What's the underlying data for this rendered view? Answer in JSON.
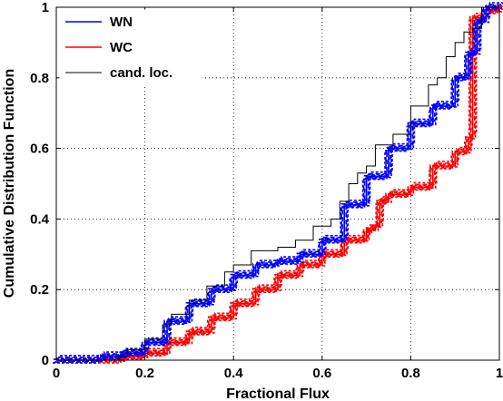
{
  "chart_data": {
    "type": "line",
    "title": "",
    "xlabel": "Fractional Flux",
    "ylabel": "Cumulative Distribution Function",
    "xlim": [
      0,
      1
    ],
    "ylim": [
      0,
      1
    ],
    "xticks": [
      "0",
      "0.2",
      "0.4",
      "0.6",
      "0.8",
      "1"
    ],
    "yticks": [
      "0",
      "0.2",
      "0.4",
      "0.6",
      "0.8",
      "1"
    ],
    "grid": true,
    "legend_position": "top-left",
    "series": [
      {
        "name": "WN",
        "color": "#0000ff",
        "style": "steps-with-dashed-bundle",
        "x": [
          0.0,
          0.1,
          0.15,
          0.2,
          0.25,
          0.3,
          0.35,
          0.4,
          0.45,
          0.5,
          0.55,
          0.6,
          0.65,
          0.7,
          0.75,
          0.8,
          0.85,
          0.9,
          0.93,
          0.95,
          0.97,
          1.0
        ],
        "y": [
          0.0,
          0.01,
          0.02,
          0.05,
          0.11,
          0.16,
          0.2,
          0.24,
          0.27,
          0.28,
          0.3,
          0.34,
          0.44,
          0.52,
          0.6,
          0.67,
          0.72,
          0.8,
          0.87,
          0.96,
          1.0,
          1.0
        ]
      },
      {
        "name": "WC",
        "color": "#ff0000",
        "style": "steps-with-dashed-bundle",
        "x": [
          0.0,
          0.1,
          0.15,
          0.2,
          0.25,
          0.3,
          0.35,
          0.4,
          0.45,
          0.5,
          0.55,
          0.6,
          0.65,
          0.7,
          0.72,
          0.73,
          0.75,
          0.8,
          0.85,
          0.9,
          0.93,
          0.94,
          0.94,
          0.97,
          1.0
        ],
        "y": [
          0.0,
          0.0,
          0.01,
          0.02,
          0.05,
          0.08,
          0.12,
          0.16,
          0.2,
          0.24,
          0.27,
          0.3,
          0.34,
          0.37,
          0.38,
          0.45,
          0.47,
          0.49,
          0.55,
          0.59,
          0.63,
          0.65,
          0.97,
          0.99,
          1.0
        ]
      },
      {
        "name": "cand. loc.",
        "color": "#000000",
        "style": "steps",
        "x": [
          0.0,
          0.14,
          0.16,
          0.2,
          0.24,
          0.26,
          0.3,
          0.34,
          0.38,
          0.4,
          0.44,
          0.5,
          0.54,
          0.58,
          0.62,
          0.64,
          0.66,
          0.68,
          0.7,
          0.72,
          0.76,
          0.8,
          0.84,
          0.86,
          0.88,
          0.9,
          0.92,
          0.94,
          0.96,
          1.0
        ],
        "y": [
          0.0,
          0.01,
          0.03,
          0.06,
          0.1,
          0.13,
          0.17,
          0.21,
          0.25,
          0.27,
          0.31,
          0.32,
          0.34,
          0.38,
          0.4,
          0.45,
          0.5,
          0.53,
          0.55,
          0.61,
          0.64,
          0.72,
          0.78,
          0.8,
          0.86,
          0.9,
          0.93,
          0.94,
          1.0,
          1.0
        ]
      }
    ]
  }
}
